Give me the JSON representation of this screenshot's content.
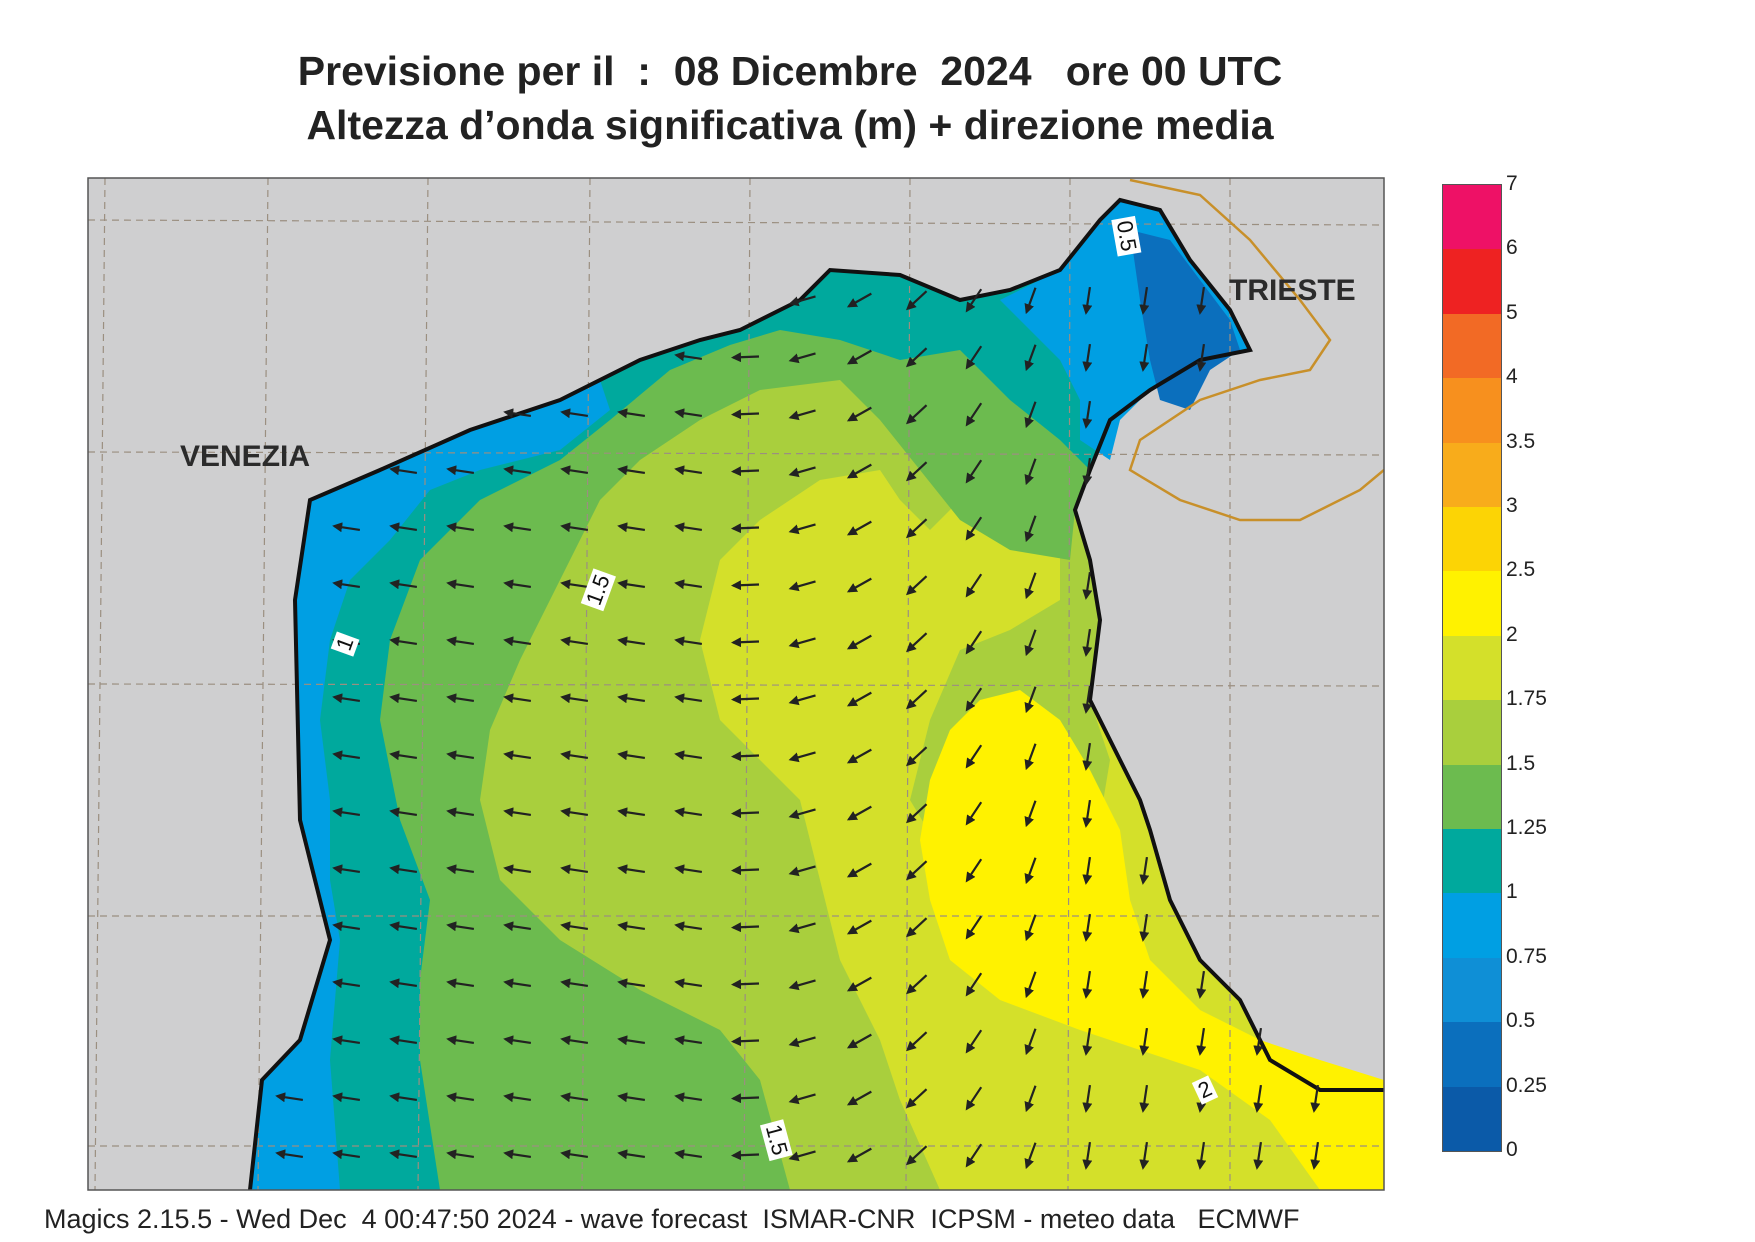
{
  "header": {
    "title_line1": "Previsione per il  :  08 Dicembre  2024   ore 00 UTC",
    "title_line2": "Altezza d’onda significativa (m) + direzione media"
  },
  "map": {
    "places": {
      "venezia": "VENEZIA",
      "trieste": "TRIESTE"
    },
    "contour_labels": [
      "0.5",
      "1.5",
      "1",
      "2",
      "1.5"
    ],
    "arrow_direction_note": "",
    "land_color": "#cfcfd0",
    "coast_color": "#111111",
    "border_color": "#c8902a"
  },
  "legend": {
    "levels": [
      "7",
      "6",
      "5",
      "4",
      "3.5",
      "3",
      "2.5",
      "2",
      "1.75",
      "1.5",
      "1.25",
      "1",
      "0.75",
      "0.5",
      "0.25",
      "0"
    ],
    "colors": [
      "#ee1166",
      "#ee2222",
      "#f26a25",
      "#f7901e",
      "#f8ac1b",
      "#fcd405",
      "#fff200",
      "#d4e02a",
      "#a9cf3d",
      "#6cbb4f",
      "#00a99d",
      "#009fe3",
      "#0f8fd6",
      "#0b6fbd",
      "#0b5aa8"
    ]
  },
  "footer": {
    "text": "Magics 2.15.5 - Wed Dec  4 00:47:50 2024 - wave forecast  ISMAR-CNR  ICPSM - meteo data   ECMWF"
  }
}
